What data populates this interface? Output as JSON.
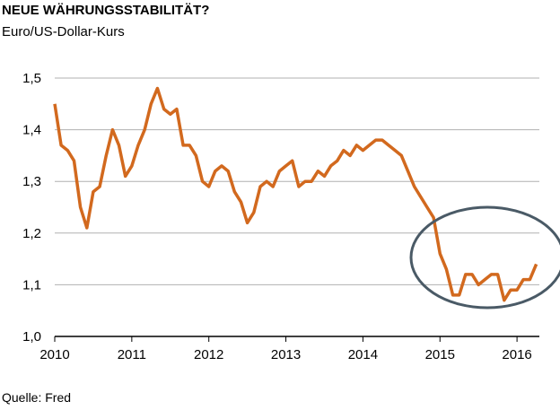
{
  "chart_data": {
    "type": "line",
    "title": "NEUE WÄHRUNGSSTABILITÄT?",
    "subtitle": "Euro/US-Dollar-Kurs",
    "source": "Quelle: Fred",
    "color": "#d2691e",
    "grid": true,
    "xlim": [
      2010,
      2016.29
    ],
    "xticks": [
      2010,
      2011,
      2012,
      2013,
      2014,
      2015,
      2016
    ],
    "ylim": [
      1.0,
      1.5
    ],
    "yticks": [
      {
        "value": 1.0,
        "label": "1,0"
      },
      {
        "value": 1.1,
        "label": "1,1"
      },
      {
        "value": 1.2,
        "label": "1,2"
      },
      {
        "value": 1.3,
        "label": "1,3"
      },
      {
        "value": 1.4,
        "label": "1,4"
      },
      {
        "value": 1.5,
        "label": "1,5"
      }
    ],
    "x": [
      2010,
      2010.083,
      2010.167,
      2010.25,
      2010.333,
      2010.417,
      2010.5,
      2010.583,
      2010.667,
      2010.75,
      2010.833,
      2010.917,
      2011,
      2011.083,
      2011.167,
      2011.25,
      2011.333,
      2011.417,
      2011.5,
      2011.583,
      2011.667,
      2011.75,
      2011.833,
      2011.917,
      2012,
      2012.083,
      2012.167,
      2012.25,
      2012.333,
      2012.417,
      2012.5,
      2012.583,
      2012.667,
      2012.75,
      2012.833,
      2012.917,
      2013,
      2013.083,
      2013.167,
      2013.25,
      2013.333,
      2013.417,
      2013.5,
      2013.583,
      2013.667,
      2013.75,
      2013.833,
      2013.917,
      2014,
      2014.083,
      2014.167,
      2014.25,
      2014.333,
      2014.417,
      2014.5,
      2014.583,
      2014.667,
      2014.75,
      2014.833,
      2014.917,
      2015,
      2015.083,
      2015.167,
      2015.25,
      2015.333,
      2015.417,
      2015.5,
      2015.583,
      2015.667,
      2015.75,
      2015.833,
      2015.917,
      2016,
      2016.083,
      2016.167,
      2016.25
    ],
    "values": [
      1.45,
      1.37,
      1.36,
      1.34,
      1.25,
      1.21,
      1.28,
      1.29,
      1.35,
      1.4,
      1.37,
      1.31,
      1.33,
      1.37,
      1.4,
      1.45,
      1.48,
      1.44,
      1.43,
      1.44,
      1.37,
      1.37,
      1.35,
      1.3,
      1.29,
      1.32,
      1.33,
      1.32,
      1.28,
      1.26,
      1.22,
      1.24,
      1.29,
      1.3,
      1.29,
      1.32,
      1.33,
      1.34,
      1.29,
      1.3,
      1.3,
      1.32,
      1.31,
      1.33,
      1.34,
      1.36,
      1.35,
      1.37,
      1.36,
      1.37,
      1.38,
      1.38,
      1.37,
      1.36,
      1.35,
      1.32,
      1.29,
      1.27,
      1.25,
      1.23,
      1.16,
      1.13,
      1.08,
      1.08,
      1.12,
      1.12,
      1.1,
      1.11,
      1.12,
      1.12,
      1.07,
      1.09,
      1.09,
      1.11,
      1.11,
      1.14
    ]
  }
}
